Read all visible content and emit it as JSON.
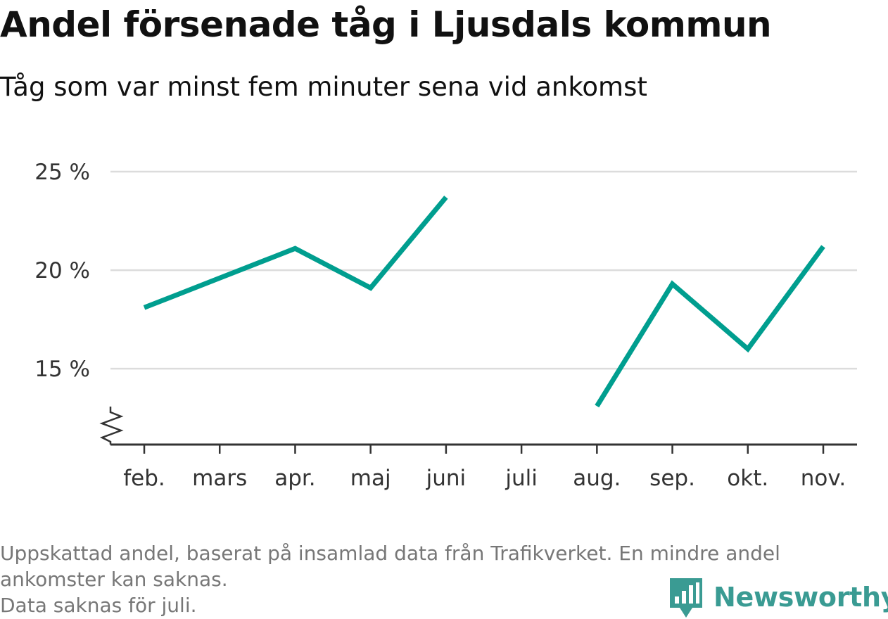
{
  "header": {
    "title": "Andel försenade tåg i Ljusdals kommun",
    "subtitle": "Tåg som var minst fem minuter sena vid ankomst"
  },
  "chart_data": {
    "type": "line",
    "categories": [
      "feb.",
      "mars",
      "apr.",
      "maj",
      "juni",
      "juli",
      "aug.",
      "sep.",
      "okt.",
      "nov."
    ],
    "series": [
      {
        "values": [
          18.1,
          19.6,
          21.1,
          19.1,
          23.7,
          null,
          13.1,
          19.3,
          16.0,
          21.2
        ]
      }
    ],
    "yticks": [
      15,
      20,
      25
    ],
    "ytick_labels": [
      "15 %",
      "20 %",
      "25 %"
    ],
    "ylim": [
      11.15,
      25
    ],
    "y_axis_break": true,
    "grid": true,
    "colors": {
      "line": "#009e8f",
      "grid": "#dcdcdc",
      "axis": "#333333"
    }
  },
  "footnote": {
    "line1": "Uppskattad andel, baserat på insamlad data från Trafikverket. En mindre andel ankomster kan saknas.",
    "line2": "Data saknas för juli."
  },
  "brand": {
    "name": "Newsworthy",
    "icon": "bar-chart-speech-bubble-icon",
    "color": "#3a9b93"
  }
}
